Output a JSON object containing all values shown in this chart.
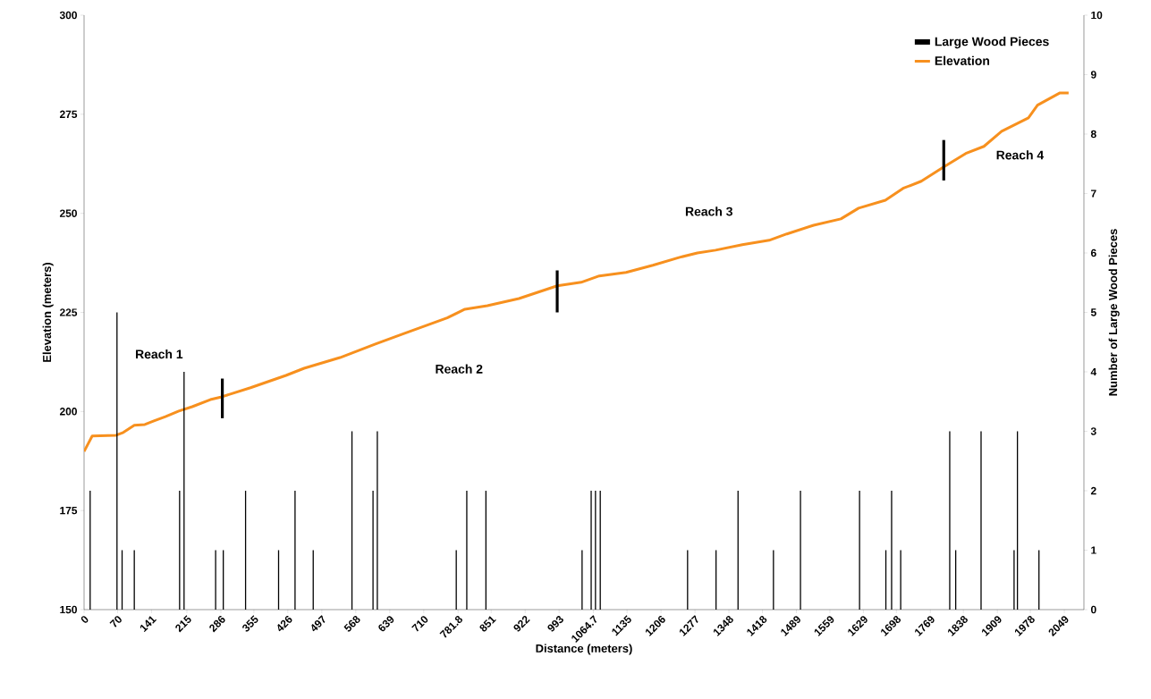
{
  "chart_data": {
    "type": "line",
    "xlabel": "Distance (meters)",
    "ylabel": "Elevation  (meters)",
    "y2label": "Number of Large Wood Pieces",
    "xlim": [
      0,
      2090
    ],
    "xticks": [
      0,
      70,
      141,
      215,
      286,
      355,
      426,
      497,
      568,
      639,
      710,
      781.8,
      851,
      922,
      993,
      1064.7,
      1135,
      1206,
      1277,
      1348,
      1418,
      1489,
      1559,
      1629,
      1698,
      1769,
      1838,
      1909,
      1978,
      2049
    ],
    "ylim": [
      150,
      300
    ],
    "yticks": [
      150,
      175,
      200,
      225,
      250,
      275,
      300
    ],
    "y2lim": [
      0,
      10
    ],
    "y2ticks": [
      0,
      1,
      2,
      3,
      4,
      5,
      6,
      7,
      8,
      9,
      10
    ],
    "legend": "top right",
    "grid": false,
    "series": [
      {
        "name": "Large Wood Pieces",
        "type": "bar",
        "axis": "y2",
        "color": "#000000",
        "x": [
          12.7,
          68.8,
          79.5,
          105,
          199.7,
          209,
          275,
          291,
          337.6,
          406.6,
          441,
          479,
          560,
          604,
          613,
          778,
          800,
          840,
          1041,
          1060,
          1069,
          1079,
          1261.5,
          1321,
          1367,
          1441,
          1497.5,
          1621,
          1676,
          1688,
          1707,
          1809.5,
          1822,
          1875,
          1944,
          1951,
          1996
        ],
        "values": [
          2,
          5,
          1,
          1,
          2,
          4,
          1,
          1,
          2,
          1,
          2,
          1,
          3,
          2,
          3,
          1,
          2,
          2,
          1,
          2,
          2,
          2,
          1,
          1,
          2,
          1,
          2,
          2,
          1,
          2,
          1,
          3,
          1,
          3,
          1,
          3,
          1
        ]
      },
      {
        "name": "Elevation",
        "color": "#f7901e",
        "x": [
          0,
          17,
          67,
          82,
          105,
          127,
          146,
          170,
          198,
          226,
          264,
          288,
          348,
          422,
          460,
          535,
          609,
          665,
          759,
          796,
          843,
          909,
          989,
          1039,
          1077,
          1133,
          1189,
          1245,
          1282,
          1320,
          1376,
          1432,
          1469,
          1525,
          1582,
          1619,
          1675,
          1712,
          1750,
          1797,
          1843,
          1881,
          1918,
          1974,
          1993,
          2040,
          2058
        ],
        "values": [
          189.9,
          193.8,
          194.0,
          194.7,
          196.5,
          196.7,
          197.6,
          198.7,
          200.1,
          201.2,
          203.0,
          203.7,
          206.0,
          209.1,
          210.9,
          213.6,
          217.0,
          219.5,
          223.6,
          225.8,
          226.7,
          228.5,
          231.7,
          232.6,
          234.2,
          235.1,
          236.9,
          238.9,
          240.0,
          240.7,
          242.1,
          243.2,
          244.8,
          247.0,
          248.6,
          251.3,
          253.3,
          256.3,
          258.1,
          261.7,
          265.1,
          266.9,
          270.7,
          274.1,
          277.3,
          280.4,
          280.4
        ]
      },
      {
        "type": "bar",
        "color": "#000000",
        "x": [
          289,
          989,
          1797
        ],
        "base": [
          198.3,
          225.0,
          258.3
        ],
        "values": [
          10.0,
          10.6,
          10.2
        ]
      }
    ],
    "annotations": [
      "Reach 1",
      "Reach 2",
      "Reach 3",
      "Reach 4"
    ]
  }
}
